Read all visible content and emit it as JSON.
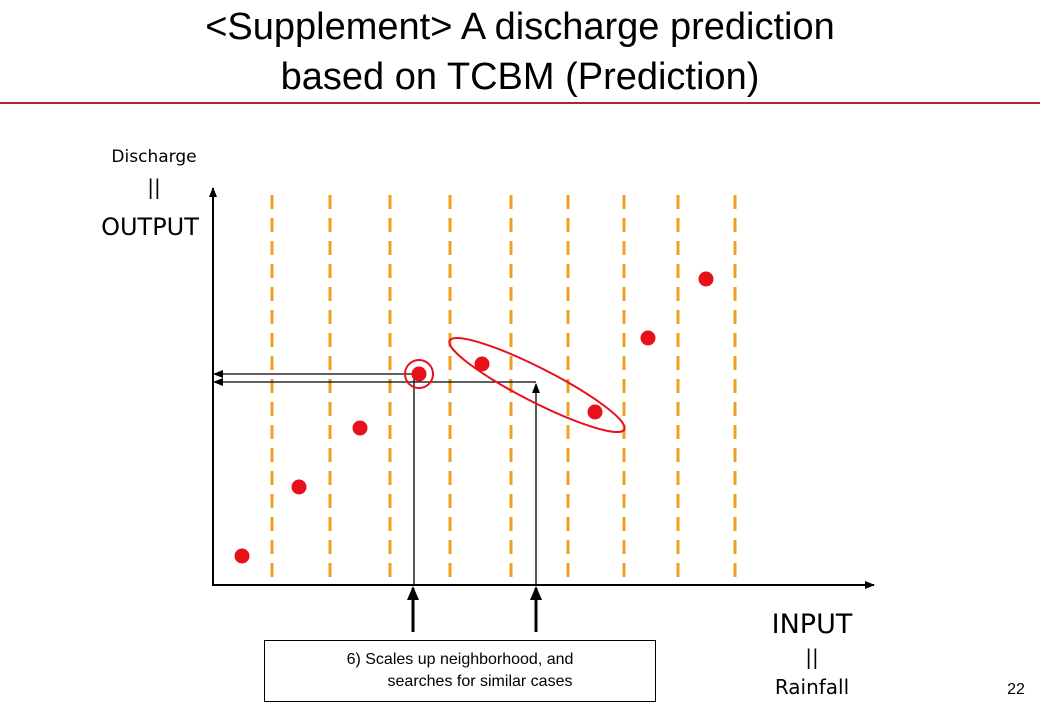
{
  "slide": {
    "title_line1": "<Supplement> A discharge prediction",
    "title_line2": "based on TCBM (Prediction)",
    "page_number": "22"
  },
  "axes": {
    "y_label_top": "Discharge",
    "y_label_separator": "||",
    "y_label_main": "OUTPUT",
    "x_label_main": "INPUT",
    "x_label_separator": "||",
    "x_label_bottom": "Rainfall"
  },
  "note": {
    "line1": "6) Scales up neighborhood, and",
    "line2": "searches for similar cases"
  },
  "colors": {
    "point": "#e8101a",
    "divider": "#f0a020",
    "title_rule": "#a52a2a",
    "highlight": "#e8101a"
  }
}
